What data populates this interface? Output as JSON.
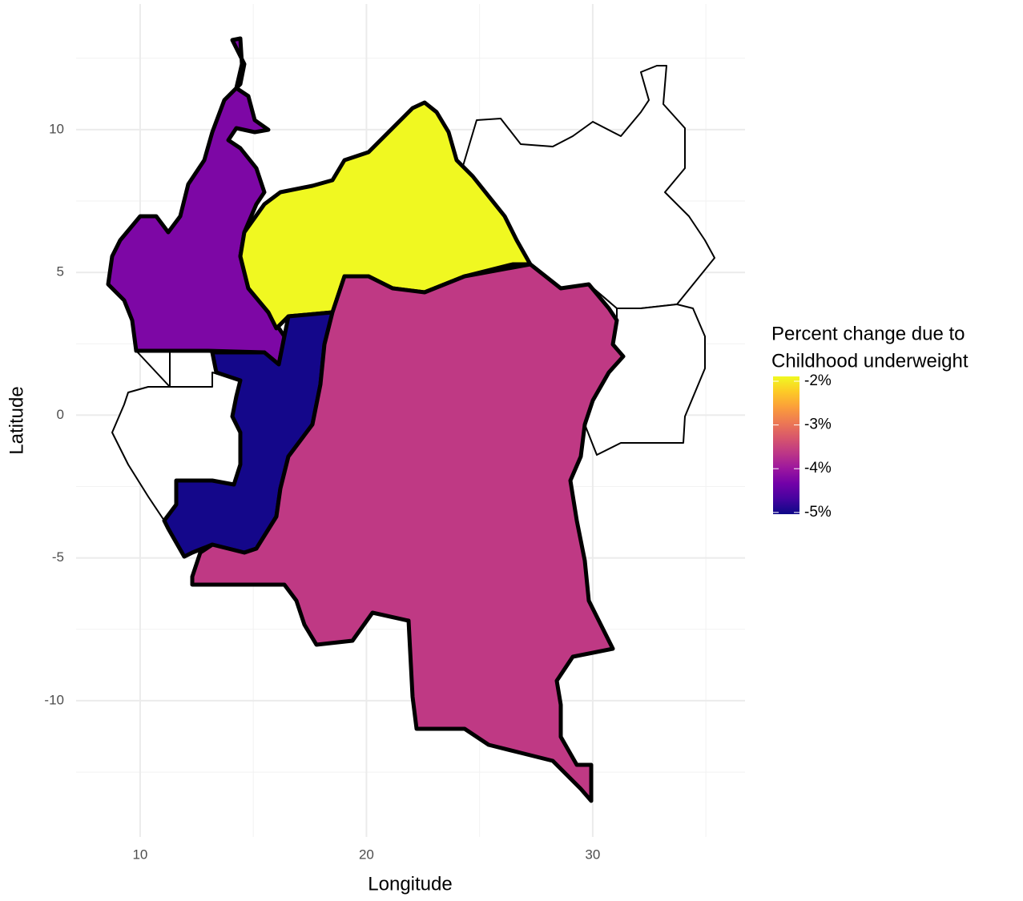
{
  "chart_data": {
    "type": "choropleth",
    "x_label": "Longitude",
    "y_label": "Latitude",
    "xlim": [
      7.17,
      36.73
    ],
    "ylim": [
      -14.77,
      14.4
    ],
    "xticks": [
      10,
      20,
      30
    ],
    "yticks": [
      -10,
      -5,
      0,
      5,
      10
    ],
    "minor_xticks": [
      15,
      25,
      35
    ],
    "minor_yticks": [
      -12.5,
      -7.5,
      -2.5,
      2.5,
      7.5,
      12.5
    ],
    "grid": true,
    "values": [
      -4.25,
      -1.9,
      -5.0,
      -3.62
    ],
    "legend_title": [
      "Percent change due to",
      "Childhood underweight"
    ],
    "clim": [
      -5.04,
      -1.89
    ],
    "colorscale": [
      "#0d0887",
      "#46039f",
      "#7201a8",
      "#9c179e",
      "#bd3786",
      "#d8576b",
      "#ed7953",
      "#fb9f3a",
      "#fdca26",
      "#f0f921"
    ],
    "cticks": [
      {
        "value": -2,
        "label": "-2%"
      },
      {
        "value": -3,
        "label": "-3%"
      },
      {
        "value": -4,
        "label": "-4%"
      },
      {
        "value": -5,
        "label": "-5%"
      }
    ]
  }
}
